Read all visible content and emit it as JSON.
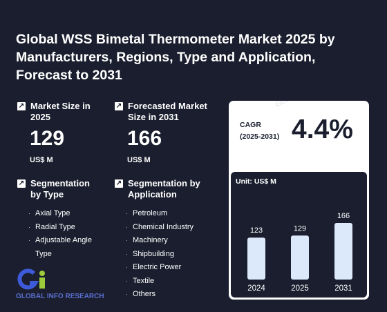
{
  "title": "Global WSS Bimetal Thermometer Market 2025 by Manufacturers, Regions, Type and Application, Forecast to 2031",
  "market_size": {
    "label": "Market Size in 2025",
    "value": "129",
    "unit": "US$ M"
  },
  "forecast": {
    "label": "Forecasted Market Size in 2031",
    "value": "166",
    "unit": "US$ M"
  },
  "seg_type": {
    "label": "Segmentation by Type",
    "items": [
      "Axial Type",
      "Radial Type",
      "Adjustable Angle Type"
    ]
  },
  "seg_app": {
    "label": "Segmentation by Application",
    "items": [
      "Petroleum",
      "Chemical Industry",
      "Machinery",
      "Shipbuilding",
      "Electric Power",
      "Textile",
      "Others"
    ]
  },
  "cagr": {
    "label_line1": "CAGR",
    "label_line2": "(2025-2031)",
    "value": "4.4%"
  },
  "logo": {
    "text": "GLOBAL INFO RESEARCH"
  },
  "watermark": "GLOBAL INFO RESEARCH",
  "colors": {
    "background": "#1a1e2e",
    "bar": "#dce9fb",
    "card": "#ffffff",
    "logo_blue": "#3d5bd9",
    "logo_green": "#9ccc3c"
  },
  "chart_data": {
    "type": "bar",
    "unit_label": "Unit: US$ M",
    "categories": [
      "2024",
      "2025",
      "2031"
    ],
    "values": [
      123,
      129,
      166
    ]
  }
}
